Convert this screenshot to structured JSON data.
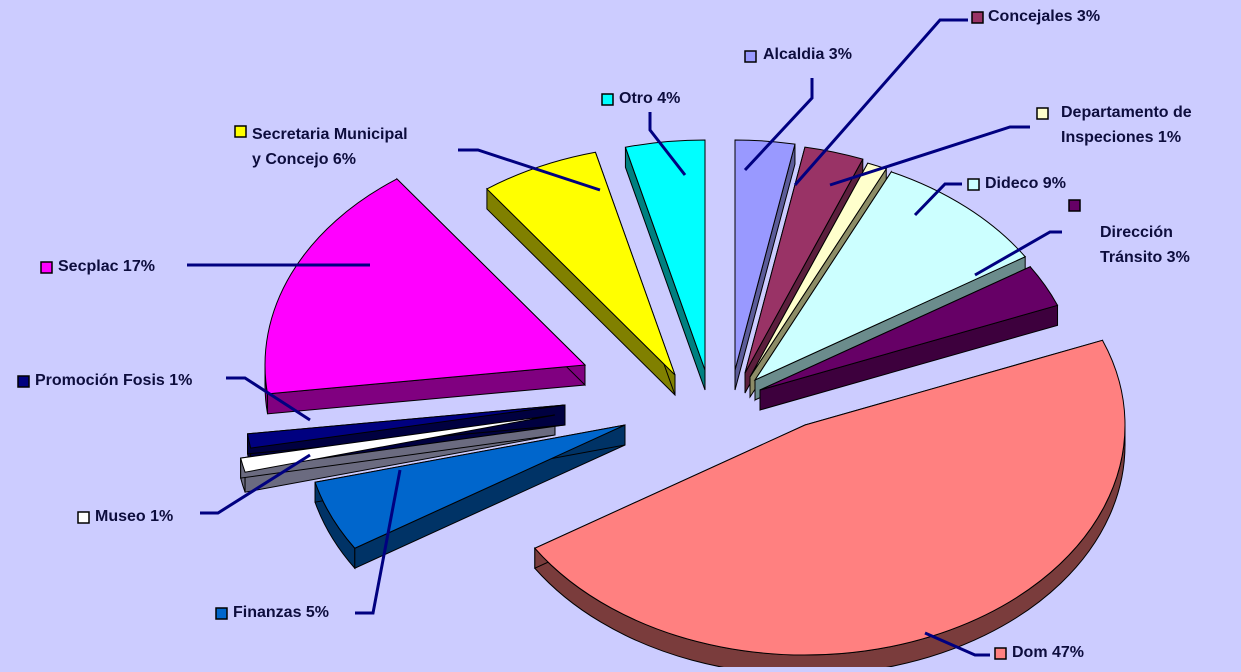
{
  "chart_data": {
    "type": "pie",
    "title": "",
    "slices": [
      {
        "label": "Alcaldia",
        "value": 3,
        "pct_label": "Alcaldia 3%",
        "color": "#9999ff",
        "side_color": "#5c5c99"
      },
      {
        "label": "Concejales",
        "value": 3,
        "pct_label": "Concejales 3%",
        "color": "#993366",
        "side_color": "#5c1f3d"
      },
      {
        "label": "Departamento de Inspeciones",
        "value": 1,
        "pct_label": "Departamento de Inspeciones 1%",
        "label_lines": [
          "Departamento de",
          "Inspeciones 1%"
        ],
        "color": "#ffffcc",
        "side_color": "#8c8c66"
      },
      {
        "label": "Dideco",
        "value": 9,
        "pct_label": "Dideco 9%",
        "color": "#ccffff",
        "side_color": "#6b8c8c"
      },
      {
        "label": "Dirección Tránsito",
        "value": 3,
        "pct_label": "Dirección Tránsito 3%",
        "label_lines": [
          "Dirección",
          "Tránsito 3%"
        ],
        "color": "#660066",
        "side_color": "#3d003d"
      },
      {
        "label": "Dom",
        "value": 47,
        "pct_label": "Dom 47%",
        "color": "#ff8080",
        "side_color": "#7a3c3c"
      },
      {
        "label": "Finanzas",
        "value": 5,
        "pct_label": "Finanzas 5%",
        "color": "#0066cc",
        "side_color": "#003366"
      },
      {
        "label": "Museo",
        "value": 1,
        "pct_label": "Museo 1%",
        "color": "#ffffff",
        "side_color": "#6b6b80"
      },
      {
        "label": "Promoción Fosis",
        "value": 1,
        "pct_label": "Promoción Fosis 1%",
        "color": "#000080",
        "side_color": "#000040"
      },
      {
        "label": "Secplac",
        "value": 17,
        "pct_label": "Secplac 17%",
        "color": "#ff00ff",
        "side_color": "#800080"
      },
      {
        "label": "Secretaria Municipal y Concejo",
        "value": 6,
        "pct_label": "Secretaria Municipal y Concejo 6%",
        "label_lines": [
          "Secretaria Municipal",
          "y Concejo 6%"
        ],
        "color": "#ffff00",
        "side_color": "#808000"
      },
      {
        "label": "Otro",
        "value": 4,
        "pct_label": "Otro 4%",
        "color": "#00ffff",
        "side_color": "#008080"
      }
    ],
    "legend": "none",
    "style": "3d-exploded-pie",
    "leader_line_color": "#000080",
    "background_color": "#ccccff"
  }
}
